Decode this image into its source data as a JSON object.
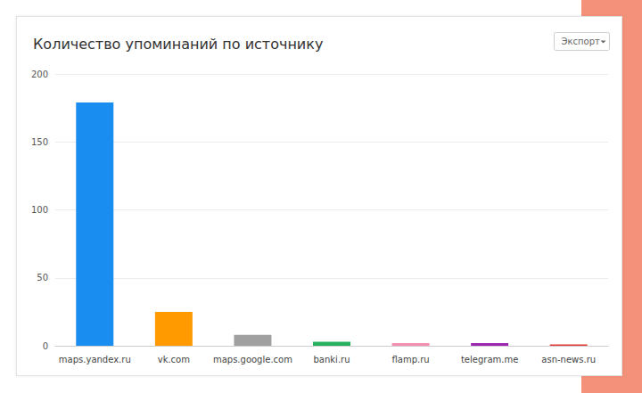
{
  "chart_data": {
    "type": "bar",
    "title": "Количество упоминаний по источнику",
    "categories": [
      "maps.yandex.ru",
      "vk.com",
      "maps.google.com",
      "banki.ru",
      "flamp.ru",
      "telegram.me",
      "asn-news.ru"
    ],
    "values": [
      179,
      25,
      8,
      3,
      2,
      2,
      1
    ],
    "colors": [
      "#1a8ef0",
      "#ff9a00",
      "#a0a0a0",
      "#27b15f",
      "#f48fb1",
      "#9c27b0",
      "#e53935"
    ],
    "ylim": [
      0,
      200
    ],
    "yticks": [
      0,
      50,
      100,
      150,
      200
    ],
    "grid": true,
    "annotations": [
      "Экспорт"
    ]
  }
}
